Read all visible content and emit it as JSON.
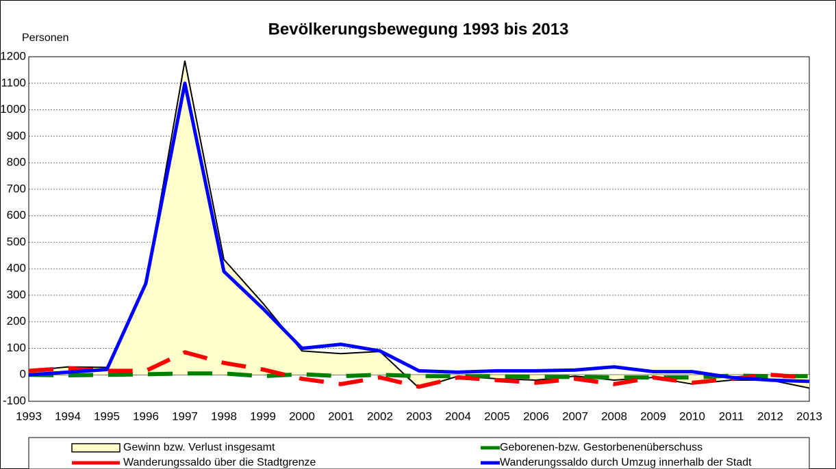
{
  "chart_data": {
    "type": "line",
    "title": "Bevölkerungsbewegung 1993 bis 2013",
    "y_label": "Personen",
    "categories": [
      "1993",
      "1994",
      "1995",
      "1996",
      "1997",
      "1998",
      "1999",
      "2000",
      "2001",
      "2002",
      "2003",
      "2004",
      "2005",
      "2006",
      "2007",
      "2008",
      "2009",
      "2010",
      "2011",
      "2012",
      "2013"
    ],
    "ylim": [
      -100,
      1200
    ],
    "yticks": [
      -100,
      0,
      100,
      200,
      300,
      400,
      500,
      600,
      700,
      800,
      900,
      1000,
      1100,
      1200
    ],
    "grid": true,
    "legend": "bottom",
    "series": [
      {
        "name": "Gewinn bzw. Verlust insgesamt",
        "color": "#000000",
        "fill": "#ffffcc",
        "style": "area",
        "values": [
          15,
          30,
          28,
          340,
          1185,
          435,
          270,
          90,
          80,
          88,
          -50,
          -5,
          -15,
          -20,
          -5,
          -20,
          -10,
          -35,
          -20,
          -20,
          -50
        ]
      },
      {
        "name": "Geborenen-bzw. Gestorbenenüberschuss",
        "color": "#008000",
        "style": "dashed",
        "values": [
          0,
          -2,
          0,
          2,
          5,
          5,
          -5,
          2,
          -5,
          0,
          -5,
          -5,
          -5,
          -8,
          -8,
          -10,
          -10,
          -10,
          -3,
          -5,
          -5
        ]
      },
      {
        "name": "Wanderungssaldo über die Stadtgrenze",
        "color": "#ff0000",
        "style": "dashed",
        "values": [
          15,
          25,
          15,
          15,
          85,
          45,
          20,
          -15,
          -35,
          -10,
          -45,
          -10,
          -20,
          -30,
          -15,
          -35,
          -10,
          -30,
          -15,
          0,
          -10
        ]
      },
      {
        "name": "Wanderungssaldo durch Umzug innerhalb der Stadt",
        "color": "#0000ff",
        "style": "solid",
        "values": [
          0,
          10,
          20,
          345,
          1100,
          390,
          250,
          100,
          115,
          90,
          15,
          10,
          15,
          15,
          18,
          30,
          12,
          12,
          -10,
          -20,
          -25
        ]
      }
    ]
  }
}
